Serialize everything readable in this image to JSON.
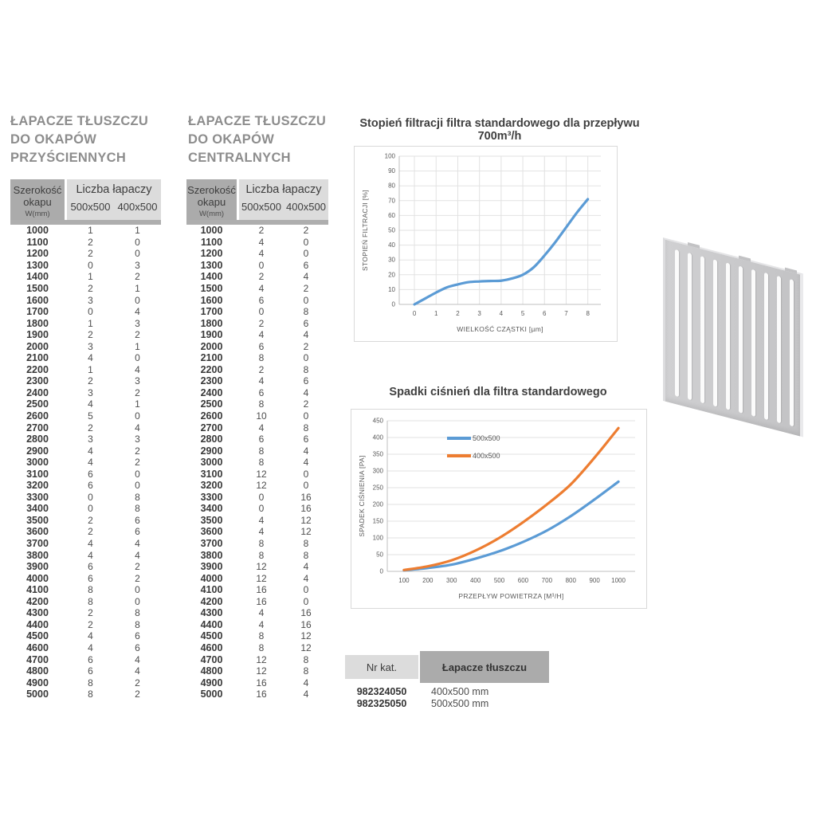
{
  "colors": {
    "blue": "#5B9BD5",
    "orange": "#ED7D31",
    "title_grey": "#8D8D8D",
    "header_dark": "#ABABAB",
    "header_light": "#DCDCDC",
    "chart_border": "#D9D9D9",
    "grid": "#E2E2E2",
    "axis": "#BFBFBF",
    "tick_text": "#595959"
  },
  "left_table": {
    "title_lines": [
      "ŁAPACZE TŁUSZCZU",
      "DO OKAPÓW",
      "PRZYŚCIENNYCH"
    ],
    "header": {
      "col1_line1": "Szerokość",
      "col1_line2": "okapu",
      "col1_sub": "W(mm)",
      "group": "Liczba łapaczy",
      "col2": "500x500",
      "col3": "400x500"
    },
    "rows": [
      [
        1000,
        1,
        1
      ],
      [
        1100,
        2,
        0
      ],
      [
        1200,
        2,
        0
      ],
      [
        1300,
        0,
        3
      ],
      [
        1400,
        1,
        2
      ],
      [
        1500,
        2,
        1
      ],
      [
        1600,
        3,
        0
      ],
      [
        1700,
        0,
        4
      ],
      [
        1800,
        1,
        3
      ],
      [
        1900,
        2,
        2
      ],
      [
        2000,
        3,
        1
      ],
      [
        2100,
        4,
        0
      ],
      [
        2200,
        1,
        4
      ],
      [
        2300,
        2,
        3
      ],
      [
        2400,
        3,
        2
      ],
      [
        2500,
        4,
        1
      ],
      [
        2600,
        5,
        0
      ],
      [
        2700,
        2,
        4
      ],
      [
        2800,
        3,
        3
      ],
      [
        2900,
        4,
        2
      ],
      [
        3000,
        4,
        2
      ],
      [
        3100,
        6,
        0
      ],
      [
        3200,
        6,
        0
      ],
      [
        3300,
        0,
        8
      ],
      [
        3400,
        0,
        8
      ],
      [
        3500,
        2,
        6
      ],
      [
        3600,
        2,
        6
      ],
      [
        3700,
        4,
        4
      ],
      [
        3800,
        4,
        4
      ],
      [
        3900,
        6,
        2
      ],
      [
        4000,
        6,
        2
      ],
      [
        4100,
        8,
        0
      ],
      [
        4200,
        8,
        0
      ],
      [
        4300,
        2,
        8
      ],
      [
        4400,
        2,
        8
      ],
      [
        4500,
        4,
        6
      ],
      [
        4600,
        4,
        6
      ],
      [
        4700,
        6,
        4
      ],
      [
        4800,
        6,
        4
      ],
      [
        4900,
        8,
        2
      ],
      [
        5000,
        8,
        2
      ]
    ]
  },
  "center_table": {
    "title_lines": [
      "ŁAPACZE TŁUSZCZU",
      "DO OKAPÓW",
      "CENTRALNYCH"
    ],
    "header": {
      "col1_line1": "Szerokość",
      "col1_line2": "okapu",
      "col1_sub": "W(mm)",
      "group": "Liczba łapaczy",
      "col2": "500x500",
      "col3": "400x500"
    },
    "rows": [
      [
        1000,
        2,
        2
      ],
      [
        1100,
        4,
        0
      ],
      [
        1200,
        4,
        0
      ],
      [
        1300,
        0,
        6
      ],
      [
        1400,
        2,
        4
      ],
      [
        1500,
        4,
        2
      ],
      [
        1600,
        6,
        0
      ],
      [
        1700,
        0,
        8
      ],
      [
        1800,
        2,
        6
      ],
      [
        1900,
        4,
        4
      ],
      [
        2000,
        6,
        2
      ],
      [
        2100,
        8,
        0
      ],
      [
        2200,
        2,
        8
      ],
      [
        2300,
        4,
        6
      ],
      [
        2400,
        6,
        4
      ],
      [
        2500,
        8,
        2
      ],
      [
        2600,
        10,
        0
      ],
      [
        2700,
        4,
        8
      ],
      [
        2800,
        6,
        6
      ],
      [
        2900,
        8,
        4
      ],
      [
        3000,
        8,
        4
      ],
      [
        3100,
        12,
        0
      ],
      [
        3200,
        12,
        0
      ],
      [
        3300,
        0,
        16
      ],
      [
        3400,
        0,
        16
      ],
      [
        3500,
        4,
        12
      ],
      [
        3600,
        4,
        12
      ],
      [
        3700,
        8,
        8
      ],
      [
        3800,
        8,
        8
      ],
      [
        3900,
        12,
        4
      ],
      [
        4000,
        12,
        4
      ],
      [
        4100,
        16,
        0
      ],
      [
        4200,
        16,
        0
      ],
      [
        4300,
        4,
        16
      ],
      [
        4400,
        4,
        16
      ],
      [
        4500,
        8,
        12
      ],
      [
        4600,
        8,
        12
      ],
      [
        4700,
        12,
        8
      ],
      [
        4800,
        12,
        8
      ],
      [
        4900,
        16,
        4
      ],
      [
        5000,
        16,
        4
      ]
    ]
  },
  "chart_data": [
    {
      "type": "line",
      "title": "Stopień filtracji filtra standardowego dla przepływu 700m³/h",
      "xlabel": "WIELKOŚĆ CZĄSTKI [µm]",
      "ylabel": "STOPIEŃ FILTRACJI [%]",
      "xlim": [
        -0.7,
        8.6
      ],
      "ylim": [
        0,
        100
      ],
      "xticks": [
        0,
        1,
        2,
        3,
        4,
        5,
        6,
        7,
        8
      ],
      "yticks": [
        0,
        10,
        20,
        30,
        40,
        50,
        60,
        70,
        80,
        90,
        100
      ],
      "grid_vertical": true,
      "legend": false,
      "series": [
        {
          "name": "standard",
          "color": "#5B9BD5",
          "x": [
            0,
            0.5,
            1,
            1.5,
            2,
            2.5,
            3,
            3.5,
            4,
            4.5,
            5,
            5.5,
            6,
            6.5,
            7,
            7.5,
            8
          ],
          "y": [
            0,
            4,
            8,
            11.5,
            13.5,
            15,
            15.5,
            15.8,
            16,
            17.5,
            20,
            25,
            33,
            42,
            52,
            62,
            71
          ]
        }
      ]
    },
    {
      "type": "line",
      "title": "Spadki ciśnień dla filtra standardowego",
      "xlabel": "PRZEPŁYW POWIETRZA [M³/H]",
      "ylabel": "SPADEK CIŚNIENIA [PA]",
      "xlim": [
        30,
        1070
      ],
      "ylim": [
        0,
        450
      ],
      "xticks": [
        100,
        200,
        300,
        400,
        500,
        600,
        700,
        800,
        900,
        1000
      ],
      "yticks": [
        0,
        50,
        100,
        150,
        200,
        250,
        300,
        350,
        400,
        450
      ],
      "grid_vertical": false,
      "legend": true,
      "series": [
        {
          "name": "500x500",
          "color": "#5B9BD5",
          "x": [
            100,
            200,
            300,
            400,
            500,
            600,
            700,
            800,
            900,
            1000
          ],
          "y": [
            3,
            10,
            20,
            38,
            60,
            88,
            122,
            165,
            215,
            268
          ]
        },
        {
          "name": "400x500",
          "color": "#ED7D31",
          "x": [
            100,
            200,
            300,
            400,
            500,
            600,
            700,
            800,
            900,
            1000
          ],
          "y": [
            4,
            15,
            33,
            62,
            100,
            147,
            200,
            260,
            340,
            428
          ]
        }
      ]
    }
  ],
  "catalog_table": {
    "headers": [
      "Nr kat.",
      "Łapacze tłuszczu"
    ],
    "rows": [
      [
        "982324050",
        "400x500 mm"
      ],
      [
        "982325050",
        "500x500 mm"
      ]
    ]
  },
  "filter_image": {
    "slots": 10
  }
}
